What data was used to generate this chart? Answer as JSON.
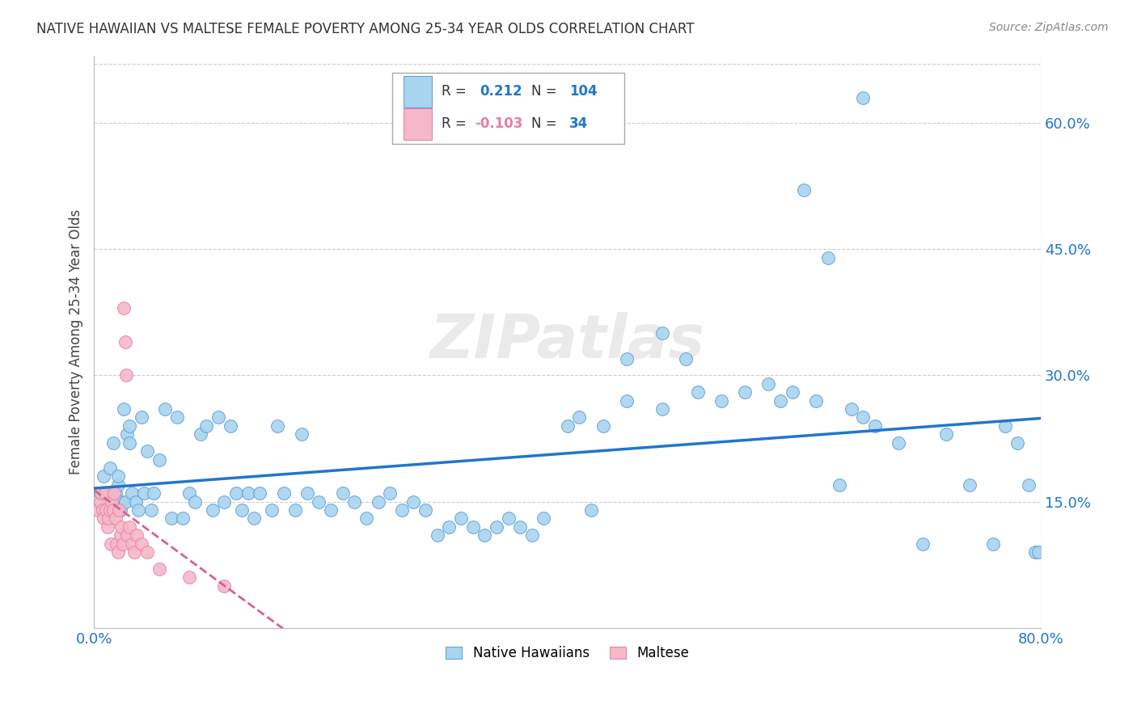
{
  "title": "NATIVE HAWAIIAN VS MALTESE FEMALE POVERTY AMONG 25-34 YEAR OLDS CORRELATION CHART",
  "source": "Source: ZipAtlas.com",
  "ylabel": "Female Poverty Among 25-34 Year Olds",
  "yticks": [
    0.0,
    0.15,
    0.3,
    0.45,
    0.6
  ],
  "ytick_labels": [
    "",
    "15.0%",
    "30.0%",
    "45.0%",
    "60.0%"
  ],
  "xlim": [
    0.0,
    0.8
  ],
  "ylim": [
    0.0,
    0.68
  ],
  "nh_color": "#a8d4f0",
  "maltese_color": "#f5b8c8",
  "nh_edge_color": "#5b9bd5",
  "maltese_edge_color": "#e87fa0",
  "nh_line_color": "#2176cc",
  "maltese_line_color": "#d96090",
  "background_color": "#ffffff",
  "grid_color": "#cccccc",
  "title_color": "#333333",
  "source_color": "#888888",
  "right_axis_color": "#2176cc",
  "nh_R": "0.212",
  "nh_N": "104",
  "maltese_R": "-0.103",
  "maltese_N": "34",
  "nh_x": [
    0.005,
    0.008,
    0.01,
    0.012,
    0.013,
    0.015,
    0.015,
    0.016,
    0.017,
    0.018,
    0.02,
    0.02,
    0.022,
    0.023,
    0.025,
    0.026,
    0.028,
    0.03,
    0.03,
    0.032,
    0.035,
    0.037,
    0.04,
    0.042,
    0.045,
    0.048,
    0.05,
    0.055,
    0.06,
    0.065,
    0.07,
    0.075,
    0.08,
    0.085,
    0.09,
    0.095,
    0.1,
    0.105,
    0.11,
    0.115,
    0.12,
    0.125,
    0.13,
    0.135,
    0.14,
    0.15,
    0.155,
    0.16,
    0.17,
    0.175,
    0.18,
    0.19,
    0.2,
    0.21,
    0.22,
    0.23,
    0.24,
    0.25,
    0.26,
    0.27,
    0.28,
    0.29,
    0.3,
    0.31,
    0.32,
    0.33,
    0.34,
    0.35,
    0.36,
    0.37,
    0.38,
    0.4,
    0.41,
    0.42,
    0.43,
    0.45,
    0.48,
    0.5,
    0.51,
    0.53,
    0.55,
    0.57,
    0.59,
    0.61,
    0.63,
    0.64,
    0.65,
    0.66,
    0.68,
    0.7,
    0.72,
    0.74,
    0.76,
    0.77,
    0.78,
    0.79,
    0.795,
    0.798,
    0.6,
    0.62,
    0.58,
    0.65,
    0.45,
    0.48
  ],
  "nh_y": [
    0.16,
    0.18,
    0.16,
    0.15,
    0.19,
    0.15,
    0.16,
    0.22,
    0.14,
    0.16,
    0.17,
    0.18,
    0.14,
    0.15,
    0.26,
    0.15,
    0.23,
    0.24,
    0.22,
    0.16,
    0.15,
    0.14,
    0.25,
    0.16,
    0.21,
    0.14,
    0.16,
    0.2,
    0.26,
    0.13,
    0.25,
    0.13,
    0.16,
    0.15,
    0.23,
    0.24,
    0.14,
    0.25,
    0.15,
    0.24,
    0.16,
    0.14,
    0.16,
    0.13,
    0.16,
    0.14,
    0.24,
    0.16,
    0.14,
    0.23,
    0.16,
    0.15,
    0.14,
    0.16,
    0.15,
    0.13,
    0.15,
    0.16,
    0.14,
    0.15,
    0.14,
    0.11,
    0.12,
    0.13,
    0.12,
    0.11,
    0.12,
    0.13,
    0.12,
    0.11,
    0.13,
    0.24,
    0.25,
    0.14,
    0.24,
    0.27,
    0.26,
    0.32,
    0.28,
    0.27,
    0.28,
    0.29,
    0.28,
    0.27,
    0.17,
    0.26,
    0.25,
    0.24,
    0.22,
    0.1,
    0.23,
    0.17,
    0.1,
    0.24,
    0.22,
    0.17,
    0.09,
    0.09,
    0.52,
    0.44,
    0.27,
    0.63,
    0.32,
    0.35
  ],
  "maltese_x": [
    0.003,
    0.005,
    0.006,
    0.007,
    0.008,
    0.009,
    0.01,
    0.011,
    0.012,
    0.013,
    0.014,
    0.015,
    0.016,
    0.017,
    0.018,
    0.019,
    0.02,
    0.021,
    0.022,
    0.023,
    0.024,
    0.025,
    0.026,
    0.027,
    0.028,
    0.03,
    0.032,
    0.034,
    0.036,
    0.04,
    0.045,
    0.055,
    0.08,
    0.11
  ],
  "maltese_y": [
    0.14,
    0.15,
    0.16,
    0.14,
    0.13,
    0.16,
    0.14,
    0.12,
    0.13,
    0.14,
    0.1,
    0.15,
    0.14,
    0.16,
    0.13,
    0.1,
    0.09,
    0.14,
    0.11,
    0.12,
    0.1,
    0.38,
    0.34,
    0.3,
    0.11,
    0.12,
    0.1,
    0.09,
    0.11,
    0.1,
    0.09,
    0.07,
    0.06,
    0.05
  ]
}
